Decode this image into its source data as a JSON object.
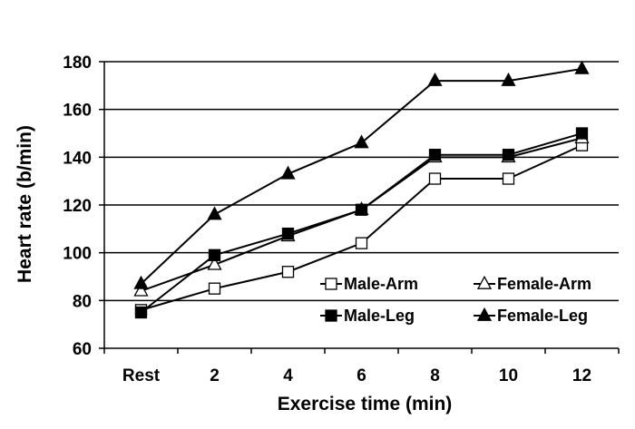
{
  "chart_data": {
    "type": "line",
    "title": "",
    "xlabel": "Exercise time (min)",
    "ylabel": "Heart rate (b/min)",
    "categories": [
      "Rest",
      "2",
      "4",
      "6",
      "8",
      "10",
      "12"
    ],
    "ylim": [
      60,
      180
    ],
    "yticks": [
      60,
      80,
      100,
      120,
      140,
      160,
      180
    ],
    "grid": "horizontal",
    "legend_position": "inside bottom-right",
    "series": [
      {
        "name": "Male-Arm",
        "marker": "square-open",
        "values": [
          76,
          85,
          92,
          104,
          131,
          131,
          145
        ]
      },
      {
        "name": "Female-Arm",
        "marker": "triangle-open",
        "values": [
          84,
          95,
          107,
          118,
          140,
          140,
          148
        ]
      },
      {
        "name": "Male-Leg",
        "marker": "square-filled",
        "values": [
          75,
          99,
          108,
          118,
          141,
          141,
          150
        ]
      },
      {
        "name": "Female-Leg",
        "marker": "triangle-filled",
        "values": [
          87,
          116,
          133,
          146,
          172,
          172,
          177
        ]
      }
    ]
  },
  "colors": {
    "line": "#000000",
    "background": "#ffffff"
  }
}
